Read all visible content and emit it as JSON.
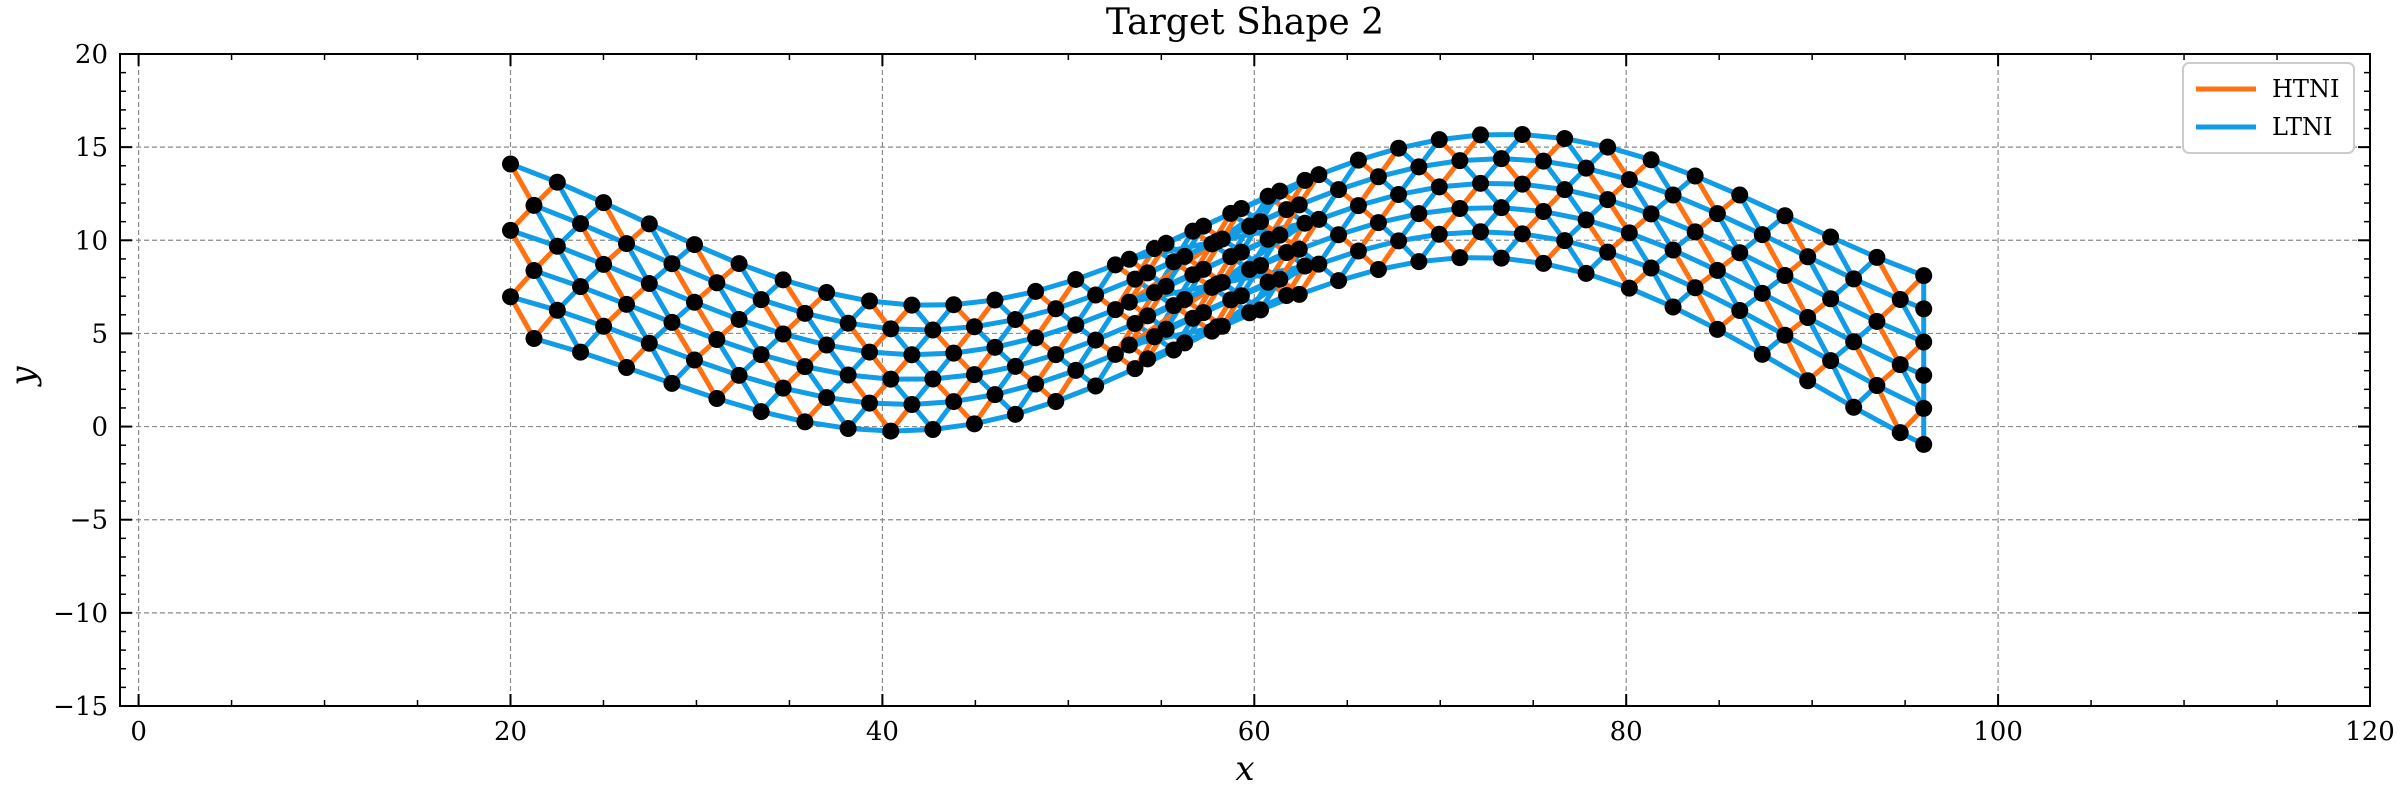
{
  "chart_data": {
    "type": "scatter",
    "title": "Target Shape 2",
    "xlabel": "x",
    "ylabel": "y",
    "xlim": [
      -1,
      120
    ],
    "ylim": [
      -15,
      20
    ],
    "xticks": [
      0,
      20,
      40,
      60,
      80,
      100,
      120
    ],
    "yticks": [
      -15,
      -10,
      -5,
      0,
      5,
      10,
      15,
      20
    ],
    "xtick_labels": [
      "0",
      "20",
      "40",
      "60",
      "80",
      "100",
      "120"
    ],
    "ytick_labels": [
      "−15",
      "−10",
      "−5",
      "0",
      "5",
      "10",
      "15",
      "20"
    ],
    "grid": true,
    "legend_position": "top-right",
    "series": [
      {
        "name": "HTNI",
        "color": "#ff7111"
      },
      {
        "name": "LTNI",
        "color": "#109ce7"
      }
    ],
    "node_color": "#000000",
    "lattice": {
      "columns": 40,
      "rows": 6,
      "x_start": 20,
      "x_end": 96,
      "x_fine_center": 58,
      "curve": {
        "a": 5.4,
        "b": 4.6,
        "period": 62,
        "phase_x": 73.5
      },
      "top_row_offset": 5.7,
      "row_spacing": 1.15,
      "bottom_end_offset": -0.15
    }
  }
}
